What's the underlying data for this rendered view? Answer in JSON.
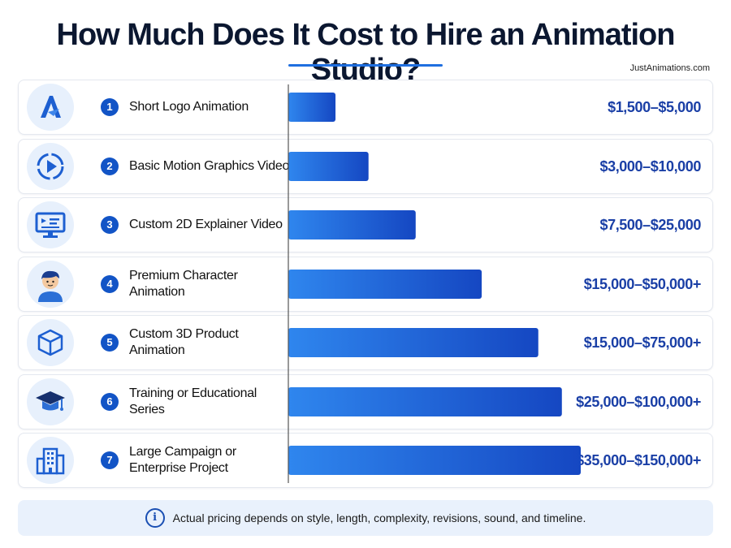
{
  "header": {
    "title": "How Much Does It Cost to Hire an Animation Studio?",
    "site": "JustAnimations.com"
  },
  "colors": {
    "accent": "#1f6fe0",
    "bar_start": "#2f86ee",
    "bar_end": "#1547c2",
    "price_text": "#1a3fa6",
    "badge": "#1254c6",
    "icon_bg": "#e7f0fc"
  },
  "chart_data": {
    "type": "bar",
    "orientation": "horizontal",
    "categories": [
      "Short Logo Animation",
      "Basic Motion Graphics Video",
      "Custom 2D Explainer Video",
      "Premium Character Animation",
      "Custom 3D Product Animation",
      "Training or Educational Series",
      "Large Campaign or Enterprise Project"
    ],
    "numbers": [
      "1",
      "2",
      "3",
      "4",
      "5",
      "6",
      "7"
    ],
    "price_labels": [
      "$1,500–$5,000",
      "$3,000–$10,000",
      "$7,500–$25,000",
      "$15,000–$50,000+",
      "$15,000–$75,000+",
      "$25,000–$100,000+",
      "$35,000–$150,000+"
    ],
    "values": [
      1,
      1.7,
      2.7,
      4.1,
      5.3,
      5.8,
      6.2
    ],
    "icons": [
      "logo-a-icon",
      "play-icon",
      "monitor-icon",
      "character-icon",
      "cube-icon",
      "graduation-cap-icon",
      "building-icon"
    ],
    "xlabel": "",
    "ylabel": "",
    "xlim": [
      0,
      6.2
    ],
    "grid": false
  },
  "footer": {
    "note": "Actual pricing depends on style, length, complexity, revisions, sound, and timeline.",
    "icon": "info-icon",
    "icon_glyph": "i"
  }
}
